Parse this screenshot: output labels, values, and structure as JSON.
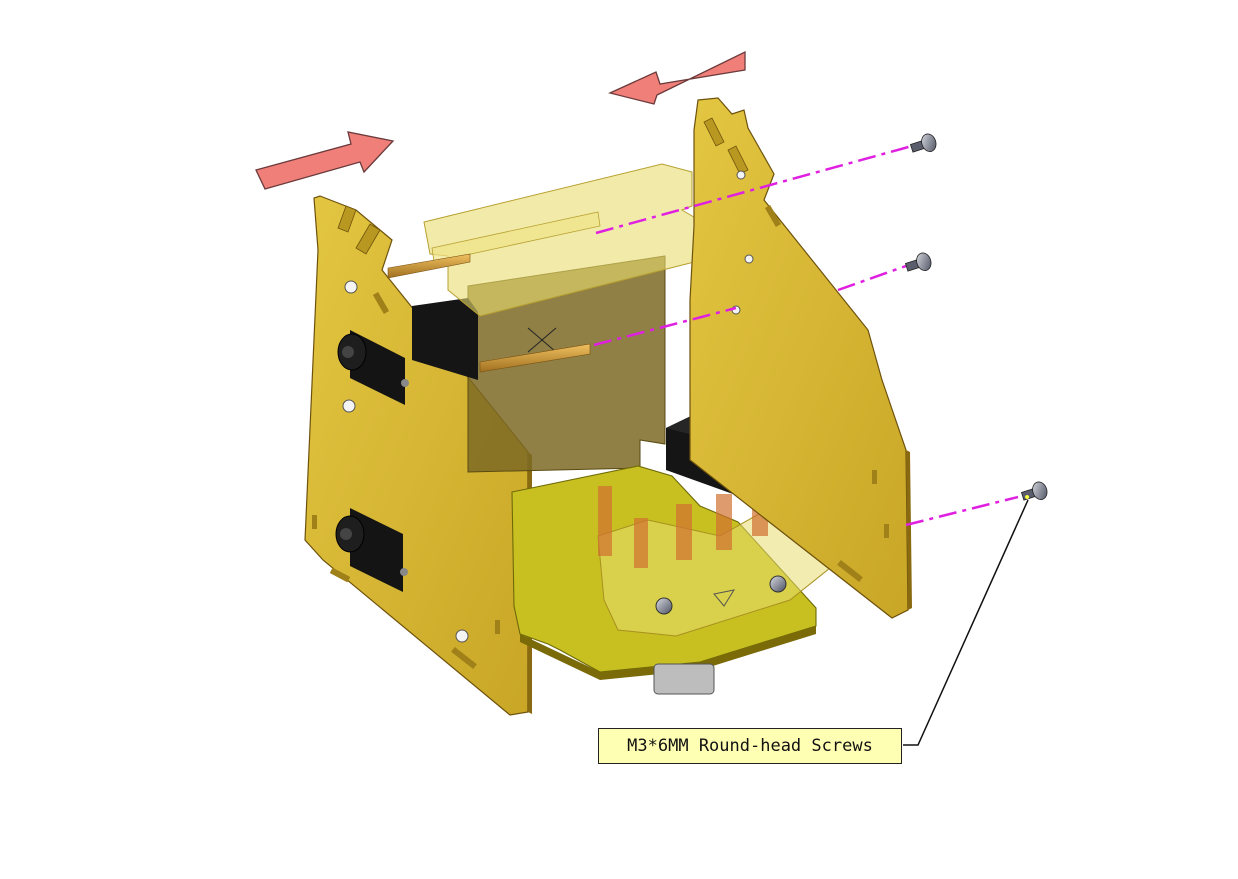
{
  "callout": {
    "label": "M3*6MM Round-head Screws"
  },
  "colors": {
    "acrylic": "#d8b832",
    "acrylic_edge": "#8a6a10",
    "base_plate": "#c8c220",
    "guide_line": "#e020e0",
    "arrow_fill": "#f07f7a",
    "servo": "#1a1a1a",
    "callout_bg": "#ffffb4"
  },
  "icons": {
    "direction_arrows": "arrow-icon",
    "screws": "screw-icon"
  }
}
